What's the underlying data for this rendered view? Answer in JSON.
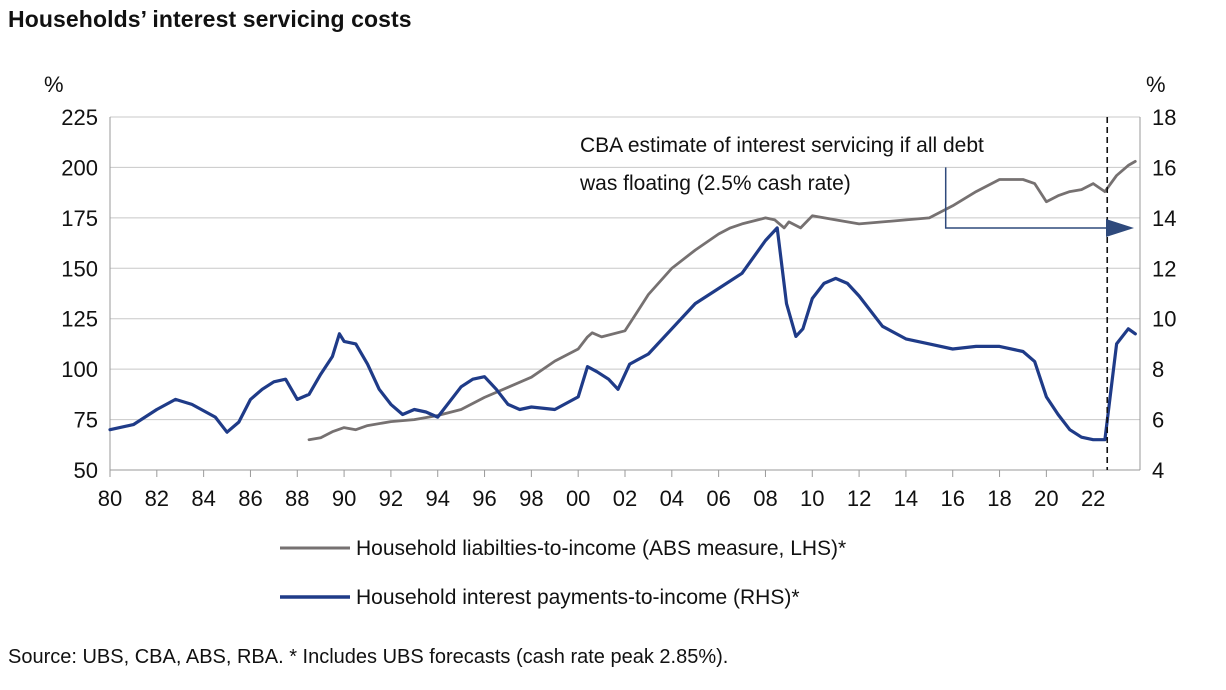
{
  "title": "Households’ interest servicing costs",
  "source": "Source: UBS, CBA, ABS, RBA. * Includes UBS forecasts (cash rate peak 2.85%).",
  "chart_data": {
    "type": "line",
    "title": "Households’ interest servicing costs",
    "left_axis": {
      "unit": "%",
      "ylim": [
        50,
        225
      ],
      "ticks": [
        "50",
        "75",
        "100",
        "125",
        "150",
        "175",
        "200",
        "225"
      ]
    },
    "right_axis": {
      "unit": "%",
      "ylim": [
        4,
        18
      ],
      "ticks": [
        "4",
        "6",
        "8",
        "10",
        "12",
        "14",
        "16",
        "18"
      ]
    },
    "x_axis": {
      "xlim": [
        1980,
        2024
      ],
      "ticks": [
        "80",
        "82",
        "84",
        "86",
        "88",
        "90",
        "92",
        "94",
        "96",
        "98",
        "00",
        "02",
        "04",
        "06",
        "08",
        "10",
        "12",
        "14",
        "16",
        "18",
        "20",
        "22"
      ]
    },
    "grid": "horizontal",
    "legend_position": "bottom",
    "annotation": {
      "line1": "CBA estimate of interest servicing if all debt",
      "line2": "was floating (2.5% cash rate)",
      "from_x": 2015.7,
      "value_rhs": 13.6,
      "vertical_from_rhs": 16.0
    },
    "forecast_line_x": 2022.6,
    "series": [
      {
        "name": "Household liabilties-to-income (ABS measure, LHS)*",
        "axis": "left",
        "color": "#767171",
        "x": [
          1988.5,
          1989,
          1989.5,
          1990,
          1990.5,
          1991,
          1992,
          1993,
          1994,
          1995,
          1996,
          1997,
          1998,
          1999,
          2000,
          2000.4,
          2000.6,
          2001,
          2002,
          2002.5,
          2003,
          2004,
          2005,
          2006,
          2006.5,
          2007,
          2008,
          2008.4,
          2008.8,
          2009,
          2009.5,
          2010,
          2011,
          2012,
          2013,
          2014,
          2015,
          2016,
          2017,
          2018,
          2019,
          2019.5,
          2020,
          2020.5,
          2021,
          2021.5,
          2022,
          2022.5,
          2023,
          2023.5,
          2023.8
        ],
        "values": [
          65,
          66,
          69,
          71,
          70,
          72,
          74,
          75,
          77,
          80,
          86,
          91,
          96,
          104,
          110,
          116,
          118,
          116,
          119,
          128,
          137,
          150,
          159,
          167,
          170,
          172,
          175,
          174,
          170,
          173,
          170,
          176,
          174,
          172,
          173,
          174,
          175,
          181,
          188,
          194,
          194,
          192,
          183,
          186,
          188,
          189,
          192,
          188,
          196,
          201,
          203
        ]
      },
      {
        "name": "Household interest payments-to-income (RHS)*",
        "axis": "right",
        "color": "#1f3b88",
        "x": [
          1980,
          1981,
          1982,
          1982.8,
          1983.5,
          1984.5,
          1985,
          1985.5,
          1986,
          1986.5,
          1987,
          1987.5,
          1988,
          1988.5,
          1989,
          1989.5,
          1989.8,
          1990,
          1990.5,
          1991,
          1991.5,
          1992,
          1992.5,
          1993,
          1993.5,
          1994,
          1995,
          1995.5,
          1996,
          1996.5,
          1997,
          1997.5,
          1998,
          1999,
          2000,
          2000.4,
          2000.8,
          2001.3,
          2001.7,
          2002.2,
          2003,
          2004,
          2005,
          2006,
          2007,
          2008,
          2008.5,
          2008.9,
          2009.3,
          2009.6,
          2010,
          2010.5,
          2011,
          2011.5,
          2012,
          2013,
          2014,
          2015,
          2016,
          2017,
          2018,
          2019,
          2019.5,
          2020,
          2020.5,
          2021,
          2021.5,
          2022,
          2022.5,
          2023,
          2023.5,
          2023.8
        ],
        "values": [
          5.6,
          5.8,
          6.4,
          6.8,
          6.6,
          6.1,
          5.5,
          5.9,
          6.8,
          7.2,
          7.5,
          7.6,
          6.8,
          7.0,
          7.8,
          8.5,
          9.4,
          9.1,
          9.0,
          8.2,
          7.2,
          6.6,
          6.2,
          6.4,
          6.3,
          6.1,
          7.3,
          7.6,
          7.7,
          7.2,
          6.6,
          6.4,
          6.5,
          6.4,
          6.9,
          8.1,
          7.9,
          7.6,
          7.2,
          8.2,
          8.6,
          9.6,
          10.6,
          11.2,
          11.8,
          13.1,
          13.6,
          10.6,
          9.3,
          9.6,
          10.8,
          11.4,
          11.6,
          11.4,
          10.9,
          9.7,
          9.2,
          9.0,
          8.8,
          8.9,
          8.9,
          8.7,
          8.3,
          6.9,
          6.2,
          5.6,
          5.3,
          5.2,
          5.2,
          9.0,
          9.6,
          9.4
        ]
      }
    ]
  }
}
